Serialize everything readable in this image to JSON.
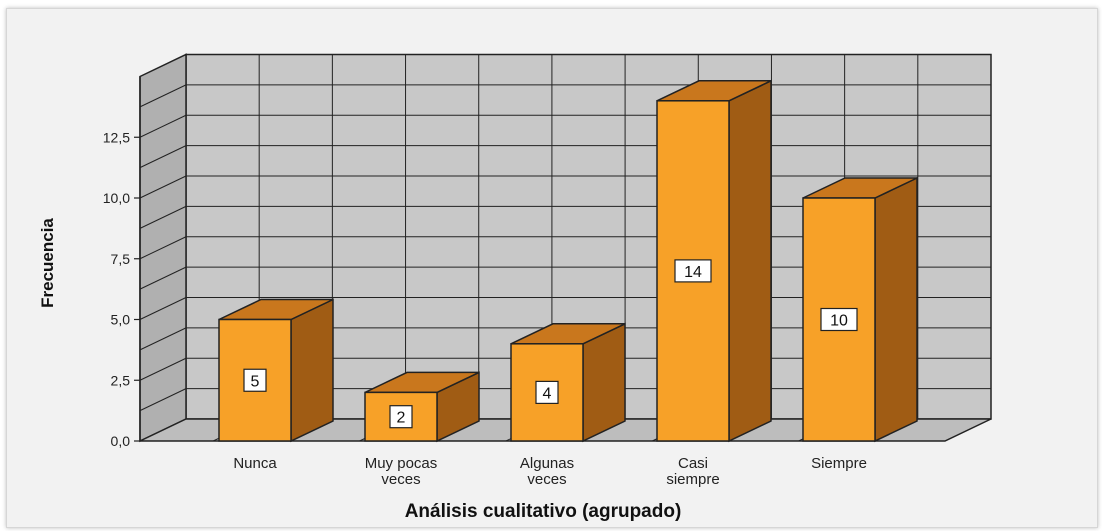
{
  "chart_data": {
    "type": "bar",
    "style": "3d",
    "categories": [
      [
        "Nunca"
      ],
      [
        "Muy pocas",
        "veces"
      ],
      [
        "Algunas",
        "veces"
      ],
      [
        "Casi",
        "siempre"
      ],
      [
        "Siempre"
      ]
    ],
    "values": [
      5,
      2,
      4,
      14,
      10
    ],
    "data_labels": [
      "5",
      "2",
      "4",
      "14",
      "10"
    ],
    "xlabel": "Análisis cualitativo (agrupado)",
    "ylabel": "Frecuencia",
    "ylim": [
      0,
      15
    ],
    "yticks": [
      "0,0",
      "2,5",
      "5,0",
      "7,5",
      "10,0",
      "12,5"
    ],
    "yticks_values": [
      0,
      2.5,
      5,
      7.5,
      10,
      12.5
    ],
    "grid": true,
    "colors": {
      "bar_front": "#f7a128",
      "bar_side": "#a05c14",
      "bar_top": "#c9771d",
      "wall": "#c8c8c8",
      "floor": "#bdbdbd",
      "left_wall": "#b0b0b0",
      "grid": "#222222"
    }
  }
}
